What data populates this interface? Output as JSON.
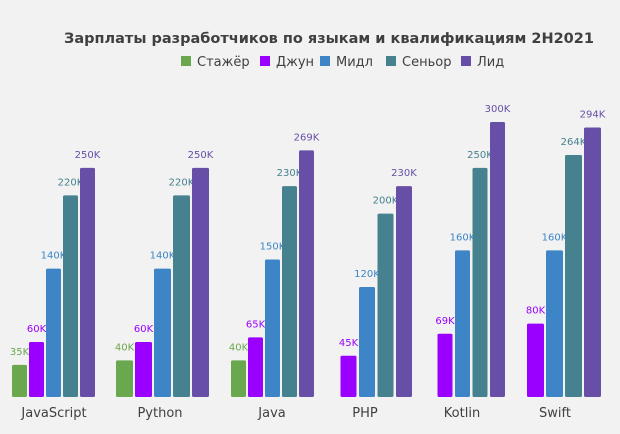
{
  "chart_data": {
    "type": "bar",
    "title": "Зарплаты разработчиков по языкам и квалификациям 2H2021",
    "legend_position": "top",
    "grid": false,
    "categories": [
      "JavaScript",
      "Python",
      "Java",
      "PHP",
      "Kotlin",
      "Swift"
    ],
    "series": [
      {
        "name": "Стажёр",
        "color": "#6aa84f",
        "values": [
          35,
          40,
          40,
          null,
          null,
          null
        ],
        "labels": [
          "35K",
          "40K",
          "40K",
          null,
          null,
          null
        ]
      },
      {
        "name": "Джун",
        "color": "#9900ff",
        "values": [
          60,
          60,
          65,
          45,
          69,
          80
        ],
        "labels": [
          "60K",
          "60K",
          "65K",
          "45K",
          "69K",
          "80K"
        ]
      },
      {
        "name": "Мидл",
        "color": "#3d85c6",
        "values": [
          140,
          140,
          150,
          120,
          160,
          160
        ],
        "labels": [
          "140K",
          "140K",
          "150K",
          "120K",
          "160K",
          "160K"
        ]
      },
      {
        "name": "Сеньор",
        "color": "#45818e",
        "values": [
          220,
          220,
          230,
          200,
          250,
          264
        ],
        "labels": [
          "220K",
          "220K",
          "230K",
          "200K",
          "250K",
          "264K"
        ]
      },
      {
        "name": "Лид",
        "color": "#674ea7",
        "values": [
          250,
          250,
          269,
          230,
          300,
          294
        ],
        "labels": [
          "250K",
          "250K",
          "269K",
          "230K",
          "300K",
          "294K"
        ]
      }
    ],
    "ylim": [
      0,
      300
    ],
    "unit": "K"
  }
}
